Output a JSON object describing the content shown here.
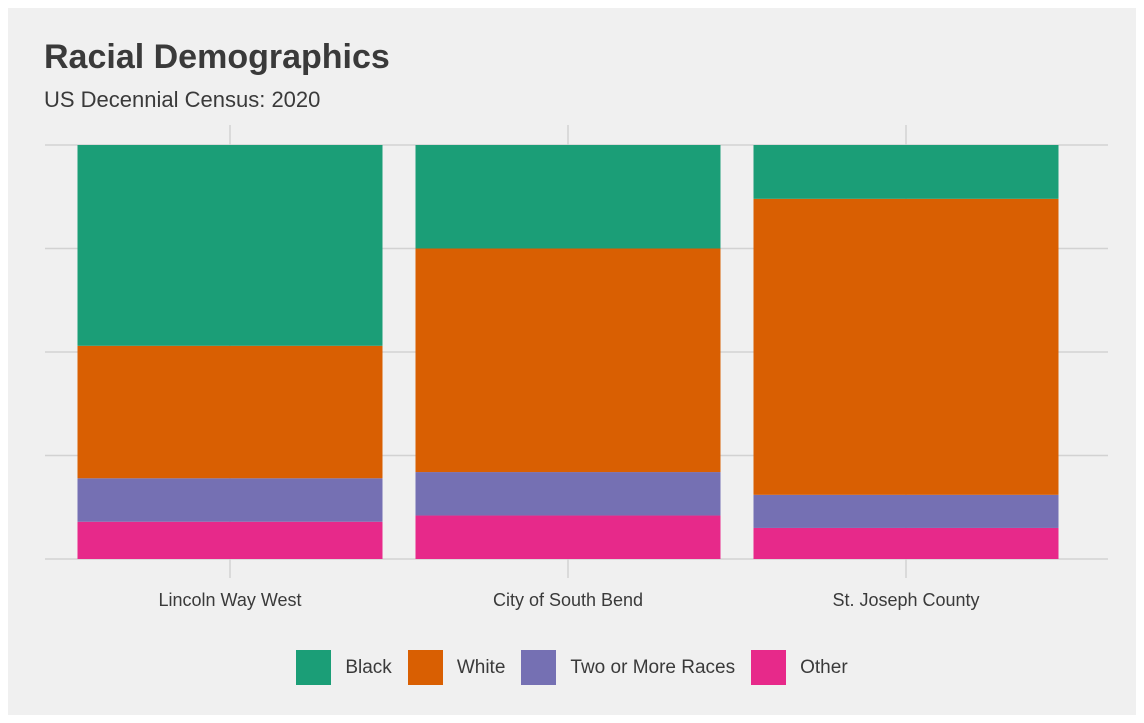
{
  "title": "Racial Demographics",
  "subtitle": "US Decennial Census: 2020",
  "chart_data": {
    "type": "bar",
    "stacked": true,
    "orientation": "vertical",
    "categories": [
      "Lincoln Way West",
      "City of South Bend",
      "St. Joseph County"
    ],
    "series": [
      {
        "name": "Other",
        "color": "#e7298a",
        "values": [
          0.09,
          0.105,
          0.075
        ]
      },
      {
        "name": "Two or More Races",
        "color": "#7570b3",
        "values": [
          0.105,
          0.105,
          0.08
        ]
      },
      {
        "name": "White",
        "color": "#d95f02",
        "values": [
          0.32,
          0.54,
          0.715
        ]
      },
      {
        "name": "Black",
        "color": "#1b9e77",
        "values": [
          0.485,
          0.25,
          0.13
        ]
      }
    ],
    "ylim": [
      0,
      1
    ],
    "y_ticks": [
      0,
      0.25,
      0.5,
      0.75,
      1
    ],
    "y_tick_labels_shown": false,
    "grid": true,
    "legend_position": "bottom",
    "legend_order": [
      "Black",
      "White",
      "Two or More Races",
      "Other"
    ]
  }
}
